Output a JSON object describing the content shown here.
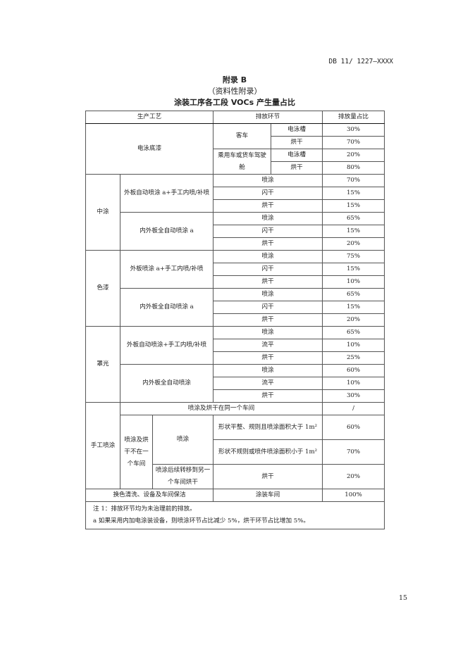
{
  "header": {
    "doc_code": "DB 11/ 1227—XXXX"
  },
  "titles": {
    "appendix": "附录 B",
    "type": "（资料性附录）",
    "table_title": "涂装工序各工段 VOCs 产生量占比"
  },
  "table": {
    "headers": [
      "生产工艺",
      "排放环节",
      "排放量占比"
    ],
    "electro": {
      "process": "电泳底漆",
      "bus": "客车",
      "car": "乘用车或货车驾驶舱",
      "tank": "电泳槽",
      "bake": "烘干",
      "values": [
        "30%",
        "70%",
        "20%",
        "80%"
      ]
    },
    "mid": {
      "name": "中涂",
      "sub1": "外板自动喷涂 a+手工内喷/补喷",
      "sub2": "内外板全自动喷涂 a",
      "steps": [
        "喷涂",
        "闪干",
        "烘干",
        "喷涂",
        "闪干",
        "烘干"
      ],
      "values": [
        "70%",
        "15%",
        "15%",
        "65%",
        "15%",
        "20%"
      ]
    },
    "color": {
      "name": "色漆",
      "sub1": "外板喷涂 a+手工内喷/补喷",
      "sub2": "内外板全自动喷涂 a",
      "steps": [
        "喷涂",
        "闪干",
        "烘干",
        "喷涂",
        "闪干",
        "烘干"
      ],
      "values": [
        "75%",
        "15%",
        "10%",
        "65%",
        "15%",
        "20%"
      ]
    },
    "clear": {
      "name": "罩光",
      "sub1": "外板自动喷涂+手工内喷/补喷",
      "sub2": "内外板全自动喷涂",
      "steps": [
        "喷涂",
        "流平",
        "烘干",
        "喷涂",
        "流平",
        "烘干"
      ],
      "values": [
        "65%",
        "10%",
        "25%",
        "60%",
        "10%",
        "30%"
      ]
    },
    "manual": {
      "name": "手工喷涂",
      "same_workshop": "喷涂及烘干在同一个车间",
      "same_value": "/",
      "diff_workshop": "喷涂及烘干不在一个车间",
      "spray": "喷涂",
      "cond1": "形状平整、规则且喷涂面积大于 1m²",
      "cond2": "形状不规则或喷件喷涂面积小于 1m²",
      "transfer": "喷涂后续转移到另一个车间烘干",
      "bake": "烘干",
      "values": [
        "60%",
        "70%",
        "20%"
      ]
    },
    "cleaning": {
      "process": "换色清洗、设备及车间保洁",
      "step": "涂装车间",
      "value": "100%"
    },
    "notes": [
      "注 1：排放环节均为未治理前的排放。",
      "a 如果采用内加电涂装设备，则喷涂环节占比减少 5%，烘干环节占比增加 5%。"
    ]
  },
  "page_number": "15"
}
